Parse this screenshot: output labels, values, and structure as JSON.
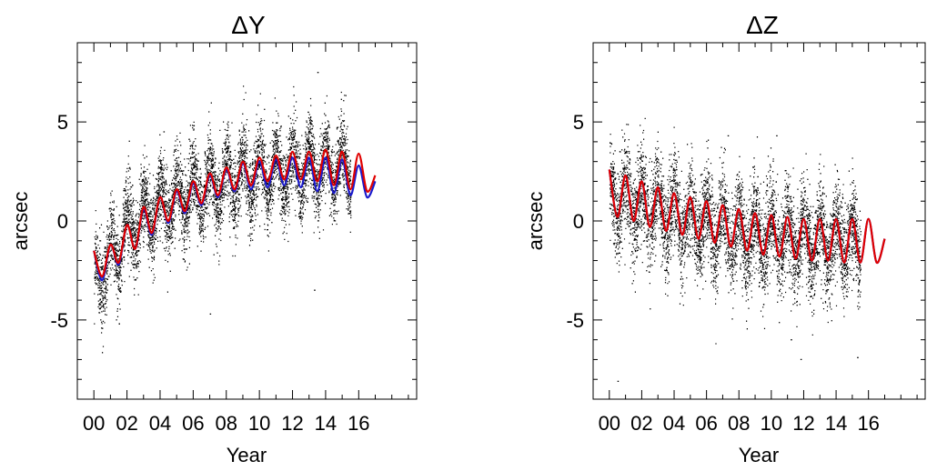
{
  "chart_data": [
    {
      "type": "scatter",
      "title": "ΔY",
      "xlabel": "Year",
      "ylabel": "arcsec",
      "xlim": [
        -1.0,
        19.5
      ],
      "ylim": [
        -9,
        9
      ],
      "xticks": [
        "00",
        "02",
        "04",
        "06",
        "08",
        "10",
        "12",
        "14",
        "16"
      ],
      "xtick_values": [
        0,
        2,
        4,
        6,
        8,
        10,
        12,
        14,
        16
      ],
      "yticks": [
        "-5",
        "0",
        "5"
      ],
      "ytick_values": [
        -5,
        0,
        5
      ],
      "grid": false,
      "colors": {
        "points": "#000000",
        "fit_red": "#e00000",
        "fit_blue": "#1a1acc"
      },
      "scatter_summary": {
        "x_range": [
          0.0,
          15.5
        ],
        "trend": [
          {
            "x": 0,
            "y": -3.0
          },
          {
            "x": 2,
            "y": -0.5
          },
          {
            "x": 4,
            "y": 0.8
          },
          {
            "x": 6,
            "y": 1.5
          },
          {
            "x": 8,
            "y": 2.0
          },
          {
            "x": 10,
            "y": 2.4
          },
          {
            "x": 12,
            "y": 2.6
          },
          {
            "x": 14,
            "y": 2.7
          },
          {
            "x": 15.5,
            "y": 2.7
          }
        ],
        "annual_amplitude": 1.1,
        "noise": 1.0,
        "outliers": [
          {
            "x": 7.0,
            "y": -4.7
          },
          {
            "x": 13.5,
            "y": 7.5
          },
          {
            "x": 13.3,
            "y": -3.5
          },
          {
            "x": 1.5,
            "y": -5.2
          },
          {
            "x": 2.3,
            "y": 1.8
          },
          {
            "x": 4.2,
            "y": 4.5
          }
        ]
      },
      "series": [
        {
          "x": [
            0,
            0.5,
            1,
            1.5,
            2,
            2.5,
            3,
            3.5,
            4,
            4.5,
            5,
            5.5,
            6,
            6.5,
            7,
            7.5,
            8,
            8.5,
            9,
            9.5,
            10,
            10.5,
            11,
            11.5,
            12,
            12.5,
            13,
            13.5,
            14,
            14.5,
            15,
            15.5,
            16,
            16.5,
            17
          ],
          "y": [
            -1.5,
            -2.8,
            -1.2,
            -2.1,
            -0.2,
            -1.4,
            0.7,
            -0.6,
            1.2,
            0.0,
            1.6,
            0.5,
            2.0,
            0.9,
            2.4,
            1.3,
            2.7,
            1.6,
            3.0,
            1.8,
            3.2,
            2.0,
            3.3,
            2.1,
            3.5,
            2.1,
            3.5,
            2.0,
            3.6,
            1.8,
            3.5,
            1.6,
            3.4,
            1.5,
            2.3
          ]
        },
        {
          "x": [
            0,
            0.5,
            1,
            1.5,
            2,
            2.5,
            3,
            3.5,
            4,
            4.5,
            5,
            5.5,
            6,
            6.5,
            7,
            7.5,
            8,
            8.5,
            9,
            9.5,
            10,
            10.5,
            11,
            11.5,
            12,
            12.5,
            13,
            13.5,
            14,
            14.5,
            15,
            15.5,
            16,
            16.5,
            17
          ],
          "y": [
            -1.5,
            -3.0,
            -1.2,
            -2.2,
            -0.2,
            -1.4,
            0.6,
            -0.7,
            1.2,
            -0.1,
            1.5,
            0.4,
            1.9,
            0.8,
            2.3,
            1.2,
            2.6,
            1.5,
            2.9,
            1.6,
            3.0,
            1.7,
            3.1,
            1.8,
            3.2,
            1.7,
            3.2,
            1.5,
            3.2,
            1.4,
            3.1,
            1.3,
            2.8,
            1.2,
            2.0
          ]
        }
      ]
    },
    {
      "type": "scatter",
      "title": "ΔZ",
      "xlabel": "Year",
      "ylabel": "arcsec",
      "xlim": [
        -1.0,
        19.5
      ],
      "ylim": [
        -9,
        9
      ],
      "xticks": [
        "00",
        "02",
        "04",
        "06",
        "08",
        "10",
        "12",
        "14",
        "16"
      ],
      "xtick_values": [
        0,
        2,
        4,
        6,
        8,
        10,
        12,
        14,
        16
      ],
      "yticks": [
        "-5",
        "0",
        "5"
      ],
      "ytick_values": [
        -5,
        0,
        5
      ],
      "grid": false,
      "colors": {
        "points": "#000000",
        "fit_red": "#e00000",
        "fit_blue": "#1a1acc"
      },
      "scatter_summary": {
        "x_range": [
          0.0,
          15.5
        ],
        "trend": [
          {
            "x": 0,
            "y": 1.2
          },
          {
            "x": 2,
            "y": 0.8
          },
          {
            "x": 4,
            "y": 0.2
          },
          {
            "x": 6,
            "y": -0.3
          },
          {
            "x": 8,
            "y": -0.6
          },
          {
            "x": 10,
            "y": -0.8
          },
          {
            "x": 12,
            "y": -1.0
          },
          {
            "x": 14,
            "y": -1.1
          },
          {
            "x": 15.5,
            "y": -1.1
          }
        ],
        "annual_amplitude": 1.1,
        "noise": 1.2,
        "outliers": [
          {
            "x": 0.5,
            "y": -8.1
          },
          {
            "x": 11.8,
            "y": -7.0
          },
          {
            "x": 15.3,
            "y": -6.9
          },
          {
            "x": 11.2,
            "y": -6.0
          },
          {
            "x": 7.3,
            "y": 4.3
          },
          {
            "x": 10.3,
            "y": 4.3
          }
        ]
      },
      "series": [
        {
          "x": [
            0,
            0.5,
            1,
            1.5,
            2,
            2.5,
            3,
            3.5,
            4,
            4.5,
            5,
            5.5,
            6,
            6.5,
            7,
            7.5,
            8,
            8.5,
            9,
            9.5,
            10,
            10.5,
            11,
            11.5,
            12,
            12.5,
            13,
            13.5,
            14,
            14.5,
            15,
            15.5,
            16,
            16.5,
            17
          ],
          "y": [
            2.6,
            0.2,
            2.3,
            0.0,
            2.0,
            -0.3,
            1.7,
            -0.5,
            1.4,
            -0.7,
            1.2,
            -0.9,
            1.0,
            -1.1,
            0.8,
            -1.3,
            0.6,
            -1.5,
            0.4,
            -1.7,
            0.3,
            -1.8,
            0.2,
            -1.9,
            0.1,
            -2.0,
            0.1,
            -2.0,
            0.1,
            -2.1,
            0.1,
            -2.1,
            0.1,
            -2.1,
            -0.9
          ]
        },
        {
          "x": [
            0,
            0.5,
            1,
            1.5,
            2,
            2.5,
            3,
            3.5,
            4,
            4.5,
            5,
            5.5,
            6,
            6.5,
            7,
            7.5,
            8,
            8.5,
            9,
            9.5,
            10,
            10.5,
            11,
            11.5,
            12,
            12.5,
            13,
            13.5,
            14,
            14.5,
            15,
            15.5,
            16,
            16.5,
            17
          ],
          "y": [
            2.6,
            0.2,
            2.3,
            0.0,
            2.0,
            -0.3,
            1.7,
            -0.5,
            1.4,
            -0.7,
            1.2,
            -0.9,
            1.0,
            -1.1,
            0.8,
            -1.3,
            0.6,
            -1.5,
            0.4,
            -1.7,
            0.3,
            -1.8,
            0.2,
            -1.9,
            0.1,
            -2.0,
            0.1,
            -2.0,
            0.1,
            -2.1,
            0.1,
            -2.1,
            0.1,
            -2.1,
            -0.9
          ]
        }
      ]
    }
  ]
}
